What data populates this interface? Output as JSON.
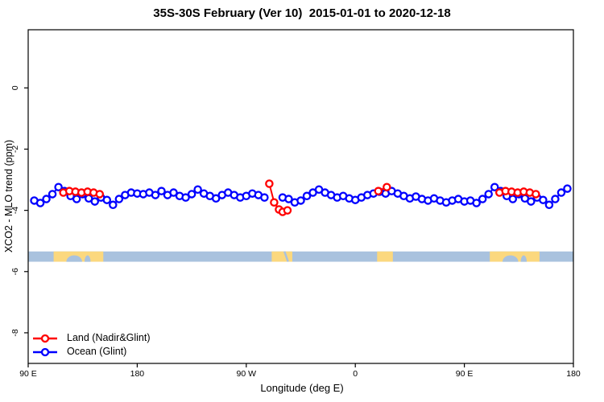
{
  "title": "35S-30S February (Ver 10)  2015-01-01 to 2020-12-18",
  "chart_data": {
    "type": "line",
    "title": "35S-30S February (Ver 10)  2015-01-01 to 2020-12-18",
    "xlabel": "Longitude (deg E)",
    "ylabel": "XCO2 - MLO trend (ppm)",
    "xlim": [
      90,
      540
    ],
    "ylim": [
      -9,
      1.9
    ],
    "grid": false,
    "axis_color": "#000000",
    "x_ticks": [
      {
        "lon": 90,
        "label": "90 E"
      },
      {
        "lon": 180,
        "label": "180"
      },
      {
        "lon": 270,
        "label": "90 W"
      },
      {
        "lon": 360,
        "label": "0"
      },
      {
        "lon": 450,
        "label": "90 E"
      },
      {
        "lon": 540,
        "label": "180"
      }
    ],
    "y_ticks": [
      {
        "value": 0,
        "label": "0"
      },
      {
        "value": -2,
        "label": "-2"
      },
      {
        "value": -4,
        "label": "-4"
      },
      {
        "value": -6,
        "label": "-6"
      },
      {
        "value": -8,
        "label": "-8"
      }
    ],
    "series": [
      {
        "name": "Ocean (Glint)",
        "color": "#0000ff",
        "marker": "open-circle",
        "gap_threshold_deg": 7,
        "points": [
          [
            95,
            -3.68
          ],
          [
            100,
            -3.76
          ],
          [
            105,
            -3.63
          ],
          [
            110,
            -3.47
          ],
          [
            115,
            -3.24
          ],
          [
            120,
            -3.37
          ],
          [
            125,
            -3.53
          ],
          [
            130,
            -3.63
          ],
          [
            135,
            -3.47
          ],
          [
            140,
            -3.61
          ],
          [
            145,
            -3.71
          ],
          [
            150,
            -3.58
          ],
          [
            155,
            -3.66
          ],
          [
            160,
            -3.82
          ],
          [
            165,
            -3.63
          ],
          [
            170,
            -3.5
          ],
          [
            175,
            -3.42
          ],
          [
            180,
            -3.45
          ],
          [
            185,
            -3.47
          ],
          [
            190,
            -3.42
          ],
          [
            195,
            -3.5
          ],
          [
            200,
            -3.37
          ],
          [
            205,
            -3.5
          ],
          [
            210,
            -3.42
          ],
          [
            215,
            -3.53
          ],
          [
            220,
            -3.58
          ],
          [
            225,
            -3.47
          ],
          [
            230,
            -3.32
          ],
          [
            235,
            -3.45
          ],
          [
            240,
            -3.53
          ],
          [
            245,
            -3.61
          ],
          [
            250,
            -3.5
          ],
          [
            255,
            -3.42
          ],
          [
            260,
            -3.5
          ],
          [
            265,
            -3.58
          ],
          [
            270,
            -3.53
          ],
          [
            275,
            -3.45
          ],
          [
            280,
            -3.5
          ],
          [
            285,
            -3.58
          ],
          [
            300,
            -3.58
          ],
          [
            305,
            -3.63
          ],
          [
            310,
            -3.74
          ],
          [
            315,
            -3.68
          ],
          [
            320,
            -3.53
          ],
          [
            325,
            -3.42
          ],
          [
            330,
            -3.32
          ],
          [
            335,
            -3.42
          ],
          [
            340,
            -3.5
          ],
          [
            345,
            -3.58
          ],
          [
            350,
            -3.53
          ],
          [
            355,
            -3.61
          ],
          [
            360,
            -3.66
          ],
          [
            365,
            -3.58
          ],
          [
            370,
            -3.5
          ],
          [
            375,
            -3.45
          ],
          [
            380,
            -3.39
          ],
          [
            385,
            -3.45
          ],
          [
            390,
            -3.37
          ],
          [
            395,
            -3.45
          ],
          [
            400,
            -3.53
          ],
          [
            405,
            -3.61
          ],
          [
            410,
            -3.55
          ],
          [
            415,
            -3.63
          ],
          [
            420,
            -3.68
          ],
          [
            425,
            -3.61
          ],
          [
            430,
            -3.68
          ],
          [
            435,
            -3.74
          ],
          [
            440,
            -3.68
          ],
          [
            445,
            -3.63
          ],
          [
            450,
            -3.71
          ],
          [
            455,
            -3.68
          ],
          [
            460,
            -3.76
          ],
          [
            465,
            -3.63
          ],
          [
            470,
            -3.47
          ],
          [
            475,
            -3.24
          ],
          [
            480,
            -3.37
          ],
          [
            485,
            -3.53
          ],
          [
            490,
            -3.63
          ],
          [
            495,
            -3.47
          ],
          [
            500,
            -3.61
          ],
          [
            505,
            -3.71
          ],
          [
            510,
            -3.58
          ],
          [
            515,
            -3.66
          ],
          [
            520,
            -3.82
          ],
          [
            525,
            -3.63
          ],
          [
            530,
            -3.42
          ],
          [
            535,
            -3.29
          ]
        ]
      },
      {
        "name": "Land (Nadir&Glint)",
        "color": "#ff0000",
        "marker": "open-circle",
        "clusters": [
          [
            [
              119,
              -3.42
            ],
            [
              124,
              -3.37
            ],
            [
              129,
              -3.39
            ],
            [
              134,
              -3.42
            ],
            [
              139,
              -3.39
            ],
            [
              144,
              -3.42
            ],
            [
              149,
              -3.47
            ]
          ],
          [
            [
              289,
              -3.13
            ],
            [
              293,
              -3.74
            ],
            [
              297,
              -3.97
            ],
            [
              300,
              -4.05
            ],
            [
              304,
              -4.0
            ]
          ],
          [
            [
              379,
              -3.37
            ],
            [
              386,
              -3.24
            ]
          ],
          [
            [
              479,
              -3.42
            ],
            [
              484,
              -3.37
            ],
            [
              489,
              -3.39
            ],
            [
              494,
              -3.42
            ],
            [
              499,
              -3.39
            ],
            [
              504,
              -3.42
            ],
            [
              509,
              -3.47
            ]
          ]
        ]
      }
    ],
    "map_strip": {
      "description": "land/ocean mask of the 35S-30S latitude band",
      "ocean_color": "#a9c2de",
      "land_color": "#fbd87e",
      "value_range": [
        -5.68,
        -5.34
      ],
      "land_patches_lon": [
        [
          111,
          152
        ],
        [
          291,
          308
        ],
        [
          378,
          391
        ],
        [
          471,
          512
        ]
      ],
      "ocean_inlets": [
        {
          "shape": "ellipse",
          "lon": 128,
          "rx": 6.5
        },
        {
          "shape": "ellipse",
          "lon": 139,
          "rx": 2.5
        },
        {
          "shape": "ellipse",
          "lon": 488,
          "rx": 6.5
        },
        {
          "shape": "ellipse",
          "lon": 499,
          "rx": 2.5
        },
        {
          "shape": "slash",
          "lon": 301.5,
          "lon2": 304.5
        }
      ]
    },
    "legend": {
      "position": "bottom-left",
      "items": [
        {
          "label": "Land (Nadir&Glint)",
          "color": "#ff0000"
        },
        {
          "label": "Ocean (Glint)",
          "color": "#0000ff"
        }
      ]
    }
  },
  "legend": {
    "land_label": "Land (Nadir&Glint)",
    "ocean_label": "Ocean (Glint)"
  }
}
